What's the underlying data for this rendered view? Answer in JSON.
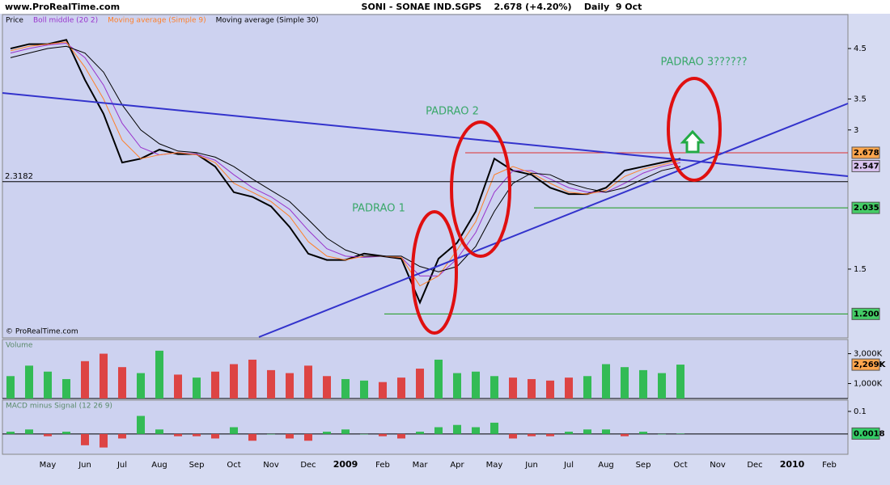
{
  "header": {
    "site": "www.ProRealTime.com"
  },
  "chart_data": [
    {
      "type": "line",
      "title": "SONI - SONAE IND.SGPS    2.678 (+4.20%)    Daily  9 Oct",
      "categories": [
        null,
        null,
        "May",
        null,
        "Jun",
        null,
        "Jul",
        null,
        "Aug",
        null,
        "Sep",
        null,
        "Oct",
        null,
        "Nov",
        null,
        "Dec",
        null,
        "2009",
        null,
        "Feb",
        null,
        "Mar",
        null,
        "Apr",
        null,
        "May",
        null,
        "Jun",
        null,
        "Jul",
        null,
        "Aug",
        null,
        "Sep",
        null,
        "Oct",
        null,
        "Nov",
        null,
        "Dec",
        null,
        "2010",
        null,
        "Feb"
      ],
      "log_scale": true,
      "ylim": [
        1.065,
        5.33
      ],
      "yticks": [
        1.5,
        3,
        3.5,
        4.5
      ],
      "series": [
        {
          "name": "Price",
          "color": "#000000",
          "values": [
            4.5,
            4.6,
            4.6,
            4.7,
            3.85,
            3.25,
            2.55,
            2.6,
            2.72,
            2.66,
            2.66,
            2.5,
            2.2,
            2.15,
            2.05,
            1.85,
            1.62,
            1.57,
            1.57,
            1.62,
            1.6,
            1.58,
            1.27,
            1.58,
            1.71,
            2.0,
            2.6,
            2.45,
            2.4,
            2.25,
            2.18,
            2.18,
            2.25,
            2.45,
            2.5,
            2.55,
            2.6,
            null,
            null,
            null,
            null,
            null,
            null,
            null,
            null
          ]
        },
        {
          "name": "Boll middle (20 2)",
          "color": "#9933cc",
          "values": [
            4.4,
            4.5,
            4.58,
            4.62,
            4.3,
            3.75,
            3.1,
            2.75,
            2.65,
            2.68,
            2.66,
            2.58,
            2.4,
            2.25,
            2.15,
            2.02,
            1.82,
            1.66,
            1.6,
            1.59,
            1.6,
            1.59,
            1.45,
            1.45,
            1.58,
            1.8,
            2.2,
            2.45,
            2.45,
            2.35,
            2.25,
            2.2,
            2.2,
            2.3,
            2.42,
            2.5,
            2.55,
            null,
            null,
            null,
            null,
            null,
            null,
            null,
            null
          ]
        },
        {
          "name": "Moving average (Simple 9)",
          "color": "#ff7f27",
          "values": [
            4.45,
            4.55,
            4.6,
            4.65,
            4.1,
            3.5,
            2.85,
            2.6,
            2.65,
            2.68,
            2.65,
            2.55,
            2.3,
            2.2,
            2.1,
            1.95,
            1.72,
            1.6,
            1.57,
            1.6,
            1.6,
            1.59,
            1.38,
            1.45,
            1.65,
            1.9,
            2.4,
            2.5,
            2.42,
            2.3,
            2.2,
            2.18,
            2.22,
            2.38,
            2.47,
            2.52,
            2.58,
            null,
            null,
            null,
            null,
            null,
            null,
            null,
            null
          ]
        },
        {
          "name": "Moving average (Simple 30)",
          "color": "#000000",
          "values": [
            4.3,
            4.4,
            4.5,
            4.55,
            4.4,
            4.0,
            3.4,
            3.0,
            2.8,
            2.7,
            2.68,
            2.62,
            2.5,
            2.35,
            2.22,
            2.1,
            1.92,
            1.75,
            1.65,
            1.6,
            1.6,
            1.6,
            1.52,
            1.48,
            1.52,
            1.68,
            2.0,
            2.3,
            2.42,
            2.4,
            2.3,
            2.24,
            2.2,
            2.25,
            2.35,
            2.45,
            2.5,
            null,
            null,
            null,
            null,
            null,
            null,
            null,
            null
          ]
        }
      ],
      "levels": [
        {
          "value": 2.3182,
          "color": "#000000",
          "label_side": "left"
        },
        {
          "value": 2.678,
          "color": "#e03030"
        },
        {
          "value": 2.035,
          "color": "#1a9a1a",
          "label_side": "right"
        },
        {
          "value": 1.2,
          "label": "1.200",
          "color": "#1a9a1a",
          "label_side": "right"
        }
      ],
      "price_tags": [
        {
          "value": 2.678,
          "color": "#ffa64d"
        },
        {
          "value": 2.547,
          "color": "#d9c2f0"
        }
      ],
      "annotations": [
        "PADRAO 1",
        "PADRAO 2",
        "PADRAO 3??????"
      ],
      "watermark": "© ProRealTime.com"
    },
    {
      "type": "bar",
      "title": "Volume",
      "ylim": [
        0,
        3950000
      ],
      "yticks": [
        {
          "value": 3000000,
          "label": "3,000K"
        },
        {
          "value": 1000000,
          "label": "1,000K"
        }
      ],
      "up_color": "#33bb55",
      "down_color": "#dd4444",
      "values": [
        1500000,
        2200000,
        1800000,
        1300000,
        2500000,
        3000000,
        2100000,
        1700000,
        3200000,
        1600000,
        1400000,
        1800000,
        2300000,
        2600000,
        1900000,
        1700000,
        2200000,
        1500000,
        1300000,
        1200000,
        1100000,
        1400000,
        2000000,
        2600000,
        1700000,
        1800000,
        1500000,
        1400000,
        1300000,
        1200000,
        1400000,
        1500000,
        2300000,
        2100000,
        1900000,
        1700000,
        2269000,
        null,
        null,
        null,
        null,
        null,
        null,
        null,
        null
      ],
      "tag": {
        "value": 2269000,
        "label": "2,269K",
        "color": "#ffa64d"
      }
    },
    {
      "type": "bar",
      "title": "MACD minus Signal (12 26 9)",
      "ylim": [
        -0.09,
        0.15
      ],
      "yticks": [
        0.1
      ],
      "up_color": "#33bb55",
      "down_color": "#dd4444",
      "values": [
        0.01,
        0.02,
        -0.01,
        0.01,
        -0.05,
        -0.06,
        -0.02,
        0.08,
        0.02,
        -0.01,
        -0.01,
        -0.02,
        0.03,
        -0.03,
        0,
        -0.02,
        -0.03,
        0.01,
        0.02,
        0,
        -0.01,
        -0.02,
        0.01,
        0.03,
        0.04,
        0.03,
        0.05,
        -0.02,
        -0.01,
        -0.01,
        0.01,
        0.02,
        0.02,
        -0.01,
        0.01,
        0,
        0.0018,
        null,
        null,
        null,
        null,
        null,
        null,
        null,
        null
      ],
      "tag": {
        "value": 0.0018,
        "color": "#33cc66"
      }
    }
  ]
}
